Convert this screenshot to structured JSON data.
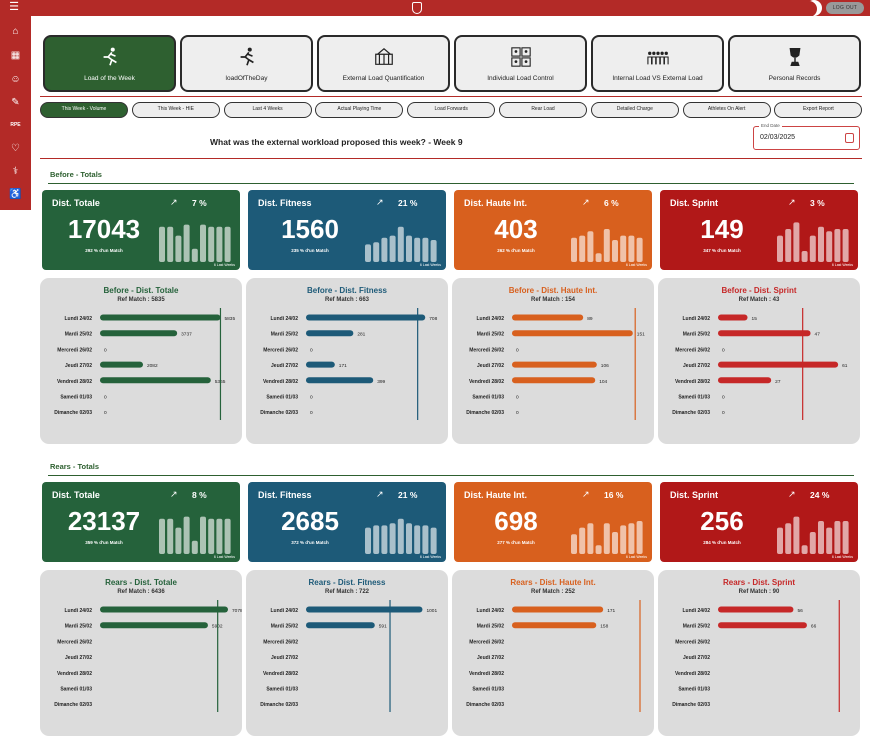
{
  "topbar": {
    "logout_label": "LOG OUT"
  },
  "sidebar": {
    "rpe_label": "RPE"
  },
  "tiles": [
    {
      "label": "Load of the Week",
      "icon": "runner-icon",
      "active": true
    },
    {
      "label": "loadOfTheDay",
      "icon": "runner-icon",
      "active": false
    },
    {
      "label": "External Load Quantification",
      "icon": "stadium-icon",
      "active": false
    },
    {
      "label": "Individual Load Control",
      "icon": "player-grid-icon",
      "active": false
    },
    {
      "label": "Internal Load VS External Load",
      "icon": "team-icon",
      "active": false
    },
    {
      "label": "Personal Records",
      "icon": "trophy-icon",
      "active": false
    }
  ],
  "tabs": [
    {
      "label": "This Week - Volume",
      "active": true
    },
    {
      "label": "This Week - HIE",
      "active": false
    },
    {
      "label": "Last 4 Weeks",
      "active": false
    },
    {
      "label": "Actual Playing Time",
      "active": false
    },
    {
      "label": "Load Forwards",
      "active": false
    },
    {
      "label": "Rear Load",
      "active": false
    },
    {
      "label": "Detailed Charge",
      "active": false
    },
    {
      "label": "Athletes On Alert",
      "active": false
    },
    {
      "label": "Export Report",
      "active": false
    }
  ],
  "question": "What was the external workload proposed this week? - Week 9",
  "date": {
    "label": "End Date",
    "value": "02/03/2025"
  },
  "colors": {
    "green": "#25623b",
    "blue": "#1d5a78",
    "orange": "#d8601e",
    "red": "#b11818"
  },
  "days": [
    "Lundi 24/02",
    "Mardi 25/02",
    "Mercredi 26/02",
    "Jeudi 27/02",
    "Vendredi 28/02",
    "Samedi 01/03",
    "Dimanche 02/03"
  ],
  "sections": [
    {
      "title": "Before - Totals",
      "kpis": [
        {
          "title": "Dist. Totale",
          "pct": "7 %",
          "value": "17043",
          "match": "292 % d'un Match",
          "weeks": "6 Last Weeks",
          "color": "#25623b",
          "spark": [
            0.8,
            0.8,
            0.6,
            0.85,
            0.3,
            0.85,
            0.8,
            0.8,
            0.8
          ]
        },
        {
          "title": "Dist. Fitness",
          "pct": "21 %",
          "value": "1560",
          "match": "235 % d'un Match",
          "weeks": "6 Last Weeks",
          "color": "#1d5a78",
          "spark": [
            0.4,
            0.45,
            0.55,
            0.6,
            0.8,
            0.6,
            0.55,
            0.55,
            0.5
          ]
        },
        {
          "title": "Dist. Haute Int.",
          "pct": "6 %",
          "value": "403",
          "match": "262 % d'un Match",
          "weeks": "6 Last Weeks",
          "color": "#d8601e",
          "spark": [
            0.55,
            0.6,
            0.7,
            0.2,
            0.75,
            0.5,
            0.6,
            0.6,
            0.55
          ]
        },
        {
          "title": "Dist. Sprint",
          "pct": "3 %",
          "value": "149",
          "match": "347 % d'un Match",
          "weeks": "6 Last Weeks",
          "color": "#b11818",
          "spark": [
            0.6,
            0.75,
            0.9,
            0.25,
            0.6,
            0.8,
            0.7,
            0.75,
            0.75
          ]
        }
      ],
      "charts": [
        {
          "title": "Before - Dist. Totale",
          "ref_label": "Ref Match : 5835",
          "ref": 5835,
          "max": 6200,
          "values": [
            5835,
            3737,
            0,
            2082,
            5365,
            0,
            0
          ],
          "labels": [
            "5835",
            "3737",
            "0",
            "2082",
            "5365",
            "0",
            "0"
          ],
          "color": "#25623b",
          "refcolor": "#25623b"
        },
        {
          "title": "Before - Dist. Fitness",
          "ref_label": "Ref Match : 663",
          "ref": 663,
          "max": 760,
          "values": [
            708,
            281,
            0,
            171,
            399,
            0,
            0
          ],
          "labels": [
            "708",
            "281",
            "0",
            "171",
            "399",
            "0",
            "0"
          ],
          "color": "#1d5a78",
          "refcolor": "#1d5a78"
        },
        {
          "title": "Before - Dist. Haute Int.",
          "ref_label": "Ref Match : 154",
          "ref": 154,
          "max": 160,
          "values": [
            89,
            151,
            0,
            106,
            104,
            0,
            0
          ],
          "labels": [
            "89",
            "151",
            "0",
            "106",
            "104",
            "0",
            "0"
          ],
          "color": "#d8601e",
          "refcolor": "#d8601e"
        },
        {
          "title": "Before - Dist. Sprint",
          "ref_label": "Ref Match : 43",
          "ref": 43,
          "max": 65,
          "values": [
            15,
            47,
            0,
            61,
            27,
            0,
            0
          ],
          "labels": [
            "15",
            "47",
            "0",
            "61",
            "27",
            "0",
            "0"
          ],
          "color": "#c62828",
          "refcolor": "#c62828"
        }
      ]
    },
    {
      "title": "Rears - Totals",
      "kpis": [
        {
          "title": "Dist. Totale",
          "pct": "8 %",
          "value": "23137",
          "match": "359 % d'un Match",
          "weeks": "6 Last Weeks",
          "color": "#25623b",
          "spark": [
            0.8,
            0.8,
            0.6,
            0.85,
            0.3,
            0.85,
            0.8,
            0.8,
            0.8
          ]
        },
        {
          "title": "Dist. Fitness",
          "pct": "21 %",
          "value": "2685",
          "match": "372 % d'un Match",
          "weeks": "6 Last Weeks",
          "color": "#1d5a78",
          "spark": [
            0.6,
            0.65,
            0.65,
            0.7,
            0.8,
            0.7,
            0.65,
            0.65,
            0.6
          ]
        },
        {
          "title": "Dist. Haute Int.",
          "pct": "16 %",
          "value": "698",
          "match": "277 % d'un Match",
          "weeks": "6 Last Weeks",
          "color": "#d8601e",
          "spark": [
            0.45,
            0.6,
            0.7,
            0.2,
            0.7,
            0.5,
            0.65,
            0.7,
            0.75
          ]
        },
        {
          "title": "Dist. Sprint",
          "pct": "24 %",
          "value": "256",
          "match": "284 % d'un Match",
          "weeks": "6 Last Weeks",
          "color": "#b11818",
          "spark": [
            0.6,
            0.7,
            0.85,
            0.2,
            0.5,
            0.75,
            0.6,
            0.75,
            0.75
          ]
        }
      ],
      "charts": [
        {
          "title": "Rears - Dist. Totale",
          "ref_label": "Ref Match : 6436",
          "ref": 6436,
          "max": 7000,
          "values": [
            7078,
            5902,
            0,
            0,
            0,
            0,
            0
          ],
          "labels": [
            "7078",
            "5902",
            "",
            "",
            "",
            "",
            ""
          ],
          "color": "#25623b",
          "refcolor": "#25623b"
        },
        {
          "title": "Rears - Dist. Fitness",
          "ref_label": "Ref Match : 722",
          "ref": 722,
          "max": 1100,
          "values": [
            1001,
            591,
            0,
            0,
            0,
            0,
            0
          ],
          "labels": [
            "1001",
            "591",
            "",
            "",
            "",
            "",
            ""
          ],
          "color": "#1d5a78",
          "refcolor": "#1d5a78"
        },
        {
          "title": "Rears - Dist. Haute Int.",
          "ref_label": "Ref Match : 252",
          "ref": 252,
          "max": 240,
          "values": [
            171,
            158,
            0,
            0,
            0,
            0,
            0
          ],
          "labels": [
            "171",
            "158",
            "",
            "",
            "",
            "",
            ""
          ],
          "color": "#d8601e",
          "refcolor": "#d8601e"
        },
        {
          "title": "Rears - Dist. Sprint",
          "ref_label": "Ref Match : 90",
          "ref": 90,
          "max": 95,
          "values": [
            56,
            66,
            0,
            0,
            0,
            0,
            0
          ],
          "labels": [
            "56",
            "66",
            "",
            "",
            "",
            "",
            ""
          ],
          "color": "#c62828",
          "refcolor": "#c62828"
        }
      ]
    }
  ]
}
